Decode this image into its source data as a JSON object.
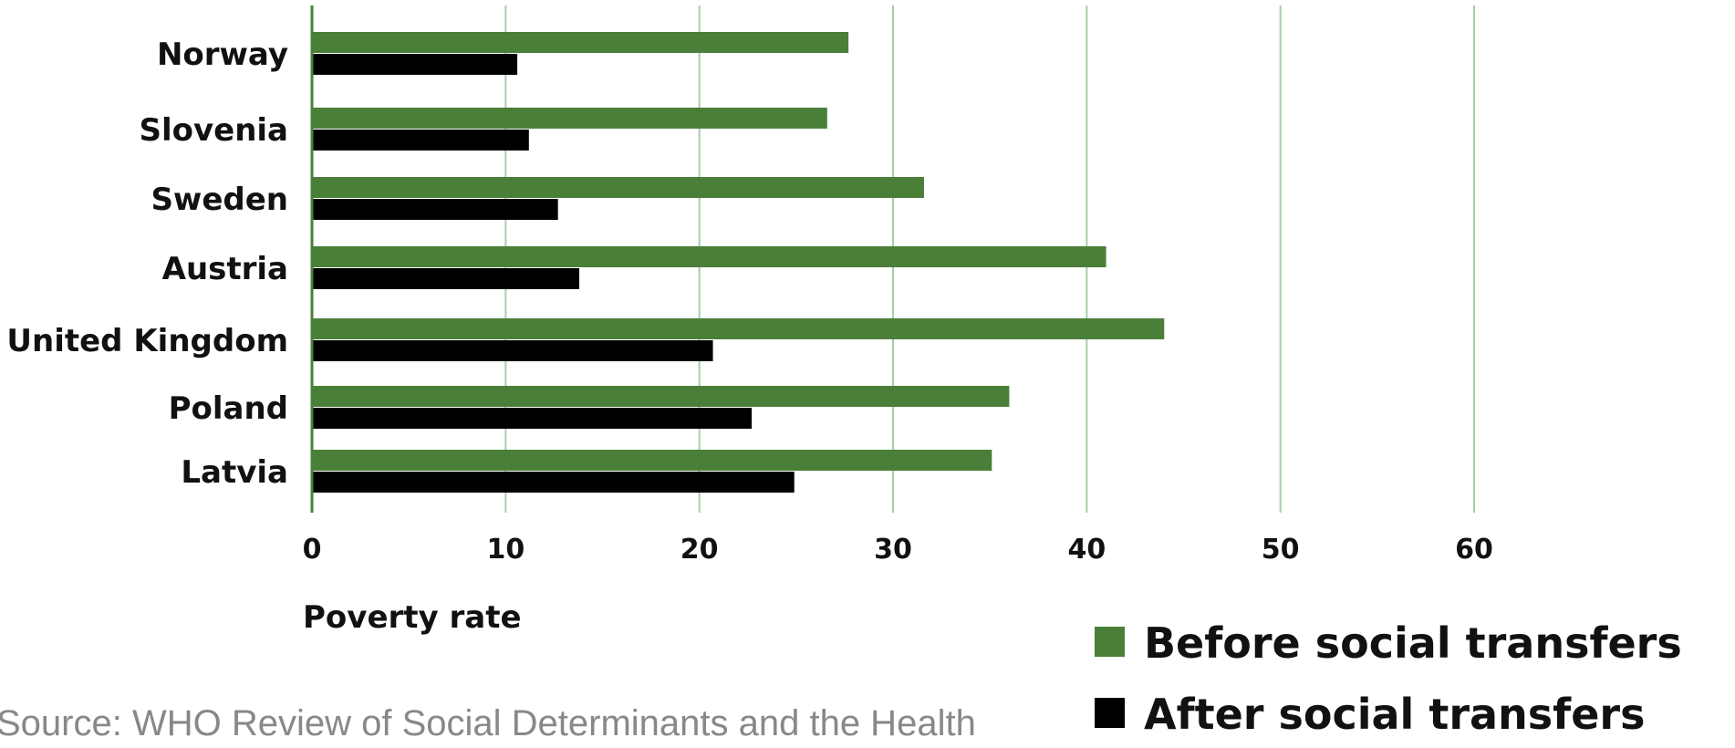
{
  "chart_data": {
    "type": "bar",
    "orientation": "horizontal",
    "categories": [
      "Norway",
      "Slovenia",
      "Sweden",
      "Austria",
      "United Kingdom",
      "Poland",
      "Latvia"
    ],
    "series": [
      {
        "name": "Before social transfers",
        "color": "#4a7f3a",
        "values": [
          27.7,
          26.6,
          31.6,
          41.0,
          44.0,
          36.0,
          35.1
        ]
      },
      {
        "name": "After social transfers",
        "color": "#000000",
        "values": [
          10.6,
          11.2,
          12.7,
          13.8,
          20.7,
          22.7,
          24.9
        ]
      }
    ],
    "xlabel": "Poverty rate",
    "xlim": [
      0,
      60
    ],
    "xticks": [
      "0",
      "10",
      "20",
      "30",
      "40",
      "50",
      "60"
    ],
    "grid": true,
    "gridline_color": "#a8cca8",
    "legend_position": "bottom-right"
  },
  "source": "Source: WHO Review of Social Determinants and the Health"
}
